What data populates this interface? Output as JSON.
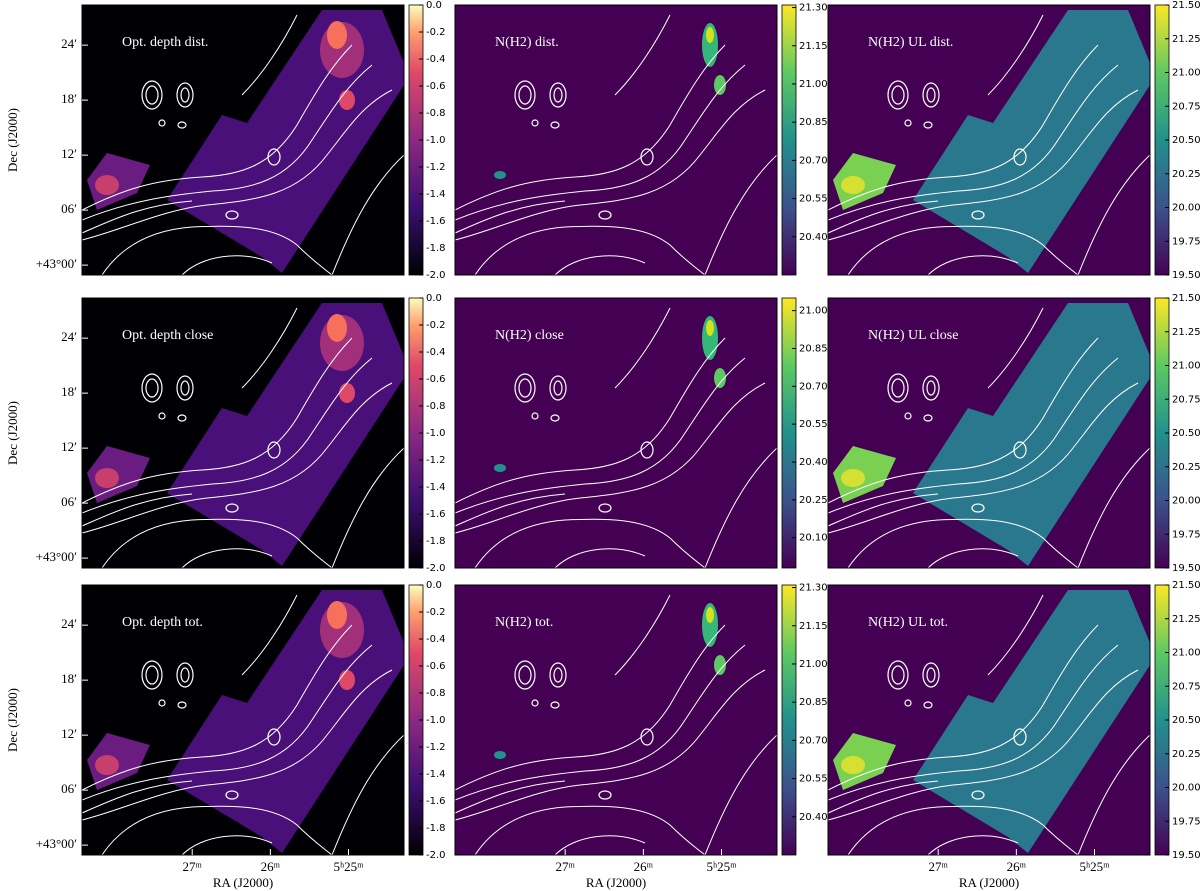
{
  "chart_data": [
    {
      "type": "image",
      "title": "Opt. depth dist.",
      "colormap": "magma",
      "clim": [
        -2.0,
        0.0
      ],
      "cticks": [
        {
          "value": -2.0,
          "label": "-2.0"
        },
        {
          "value": -1.8,
          "label": "-1.8"
        },
        {
          "value": -1.6,
          "label": "-1.6"
        },
        {
          "value": -1.4,
          "label": "-1.4"
        },
        {
          "value": -1.2,
          "label": "-1.2"
        },
        {
          "value": -1.0,
          "label": "-1.0"
        },
        {
          "value": -0.8,
          "label": "-0.8"
        },
        {
          "value": -0.6,
          "label": "-0.6"
        },
        {
          "value": -0.4,
          "label": "-0.4"
        },
        {
          "value": -0.2,
          "label": "-0.2"
        },
        {
          "value": 0.0,
          "label": "0.0"
        }
      ],
      "ylabel": "Dec (J2000)",
      "ylim": [
        42.982,
        43.473
      ],
      "yticks": [
        {
          "value": 43.0,
          "label": "+43°00′"
        },
        {
          "value": 43.1,
          "label": "06′"
        },
        {
          "value": 43.2,
          "label": "12′"
        },
        {
          "value": 43.3,
          "label": "18′"
        },
        {
          "value": 43.4,
          "label": "24′"
        }
      ]
    },
    {
      "type": "image",
      "title": "N(H2) dist.",
      "colormap": "viridis",
      "clim": [
        20.25,
        21.31
      ],
      "cticks": [
        {
          "value": 20.4,
          "label": "20.40"
        },
        {
          "value": 20.55,
          "label": "20.55"
        },
        {
          "value": 20.7,
          "label": "20.70"
        },
        {
          "value": 20.85,
          "label": "20.85"
        },
        {
          "value": 21.0,
          "label": "21.00"
        },
        {
          "value": 21.15,
          "label": "21.15"
        },
        {
          "value": 21.3,
          "label": "21.30"
        }
      ]
    },
    {
      "type": "image",
      "title": "N(H2) UL dist.",
      "colormap": "viridis",
      "clim": [
        19.5,
        21.5
      ],
      "cticks": [
        {
          "value": 19.5,
          "label": "19.50"
        },
        {
          "value": 19.75,
          "label": "19.75"
        },
        {
          "value": 20.0,
          "label": "20.00"
        },
        {
          "value": 20.25,
          "label": "20.25"
        },
        {
          "value": 20.5,
          "label": "20.50"
        },
        {
          "value": 20.75,
          "label": "20.75"
        },
        {
          "value": 21.0,
          "label": "21.00"
        },
        {
          "value": 21.25,
          "label": "21.25"
        },
        {
          "value": 21.5,
          "label": "21.50"
        }
      ]
    },
    {
      "type": "image",
      "title": "Opt. depth close",
      "colormap": "magma",
      "clim": [
        -2.0,
        0.0
      ],
      "cticks": [
        {
          "value": -2.0,
          "label": "-2.0"
        },
        {
          "value": -1.8,
          "label": "-1.8"
        },
        {
          "value": -1.6,
          "label": "-1.6"
        },
        {
          "value": -1.4,
          "label": "-1.4"
        },
        {
          "value": -1.2,
          "label": "-1.2"
        },
        {
          "value": -1.0,
          "label": "-1.0"
        },
        {
          "value": -0.8,
          "label": "-0.8"
        },
        {
          "value": -0.6,
          "label": "-0.6"
        },
        {
          "value": -0.4,
          "label": "-0.4"
        },
        {
          "value": -0.2,
          "label": "-0.2"
        },
        {
          "value": 0.0,
          "label": "0.0"
        }
      ],
      "ylabel": "Dec (J2000)",
      "ylim": [
        42.982,
        43.473
      ],
      "yticks": [
        {
          "value": 43.0,
          "label": "+43°00′"
        },
        {
          "value": 43.1,
          "label": "06′"
        },
        {
          "value": 43.2,
          "label": "12′"
        },
        {
          "value": 43.3,
          "label": "18′"
        },
        {
          "value": 43.4,
          "label": "24′"
        }
      ]
    },
    {
      "type": "image",
      "title": "N(H2) close",
      "colormap": "viridis",
      "clim": [
        19.98,
        21.05
      ],
      "cticks": [
        {
          "value": 20.1,
          "label": "20.10"
        },
        {
          "value": 20.25,
          "label": "20.25"
        },
        {
          "value": 20.4,
          "label": "20.40"
        },
        {
          "value": 20.55,
          "label": "20.55"
        },
        {
          "value": 20.7,
          "label": "20.70"
        },
        {
          "value": 20.85,
          "label": "20.85"
        },
        {
          "value": 21.0,
          "label": "21.00"
        }
      ]
    },
    {
      "type": "image",
      "title": "N(H2) UL close",
      "colormap": "viridis",
      "clim": [
        19.5,
        21.5
      ],
      "cticks": [
        {
          "value": 19.5,
          "label": "19.50"
        },
        {
          "value": 19.75,
          "label": "19.75"
        },
        {
          "value": 20.0,
          "label": "20.00"
        },
        {
          "value": 20.25,
          "label": "20.25"
        },
        {
          "value": 20.5,
          "label": "20.50"
        },
        {
          "value": 20.75,
          "label": "20.75"
        },
        {
          "value": 21.0,
          "label": "21.00"
        },
        {
          "value": 21.25,
          "label": "21.25"
        },
        {
          "value": 21.5,
          "label": "21.50"
        }
      ]
    },
    {
      "type": "image",
      "title": "Opt. depth tot.",
      "colormap": "magma",
      "clim": [
        -2.0,
        0.0
      ],
      "cticks": [
        {
          "value": -2.0,
          "label": "-2.0"
        },
        {
          "value": -1.8,
          "label": "-1.8"
        },
        {
          "value": -1.6,
          "label": "-1.6"
        },
        {
          "value": -1.4,
          "label": "-1.4"
        },
        {
          "value": -1.2,
          "label": "-1.2"
        },
        {
          "value": -1.0,
          "label": "-1.0"
        },
        {
          "value": -0.8,
          "label": "-0.8"
        },
        {
          "value": -0.6,
          "label": "-0.6"
        },
        {
          "value": -0.4,
          "label": "-0.4"
        },
        {
          "value": -0.2,
          "label": "-0.2"
        },
        {
          "value": 0.0,
          "label": "0.0"
        }
      ],
      "ylabel": "Dec (J2000)",
      "ylim": [
        42.982,
        43.473
      ],
      "yticks": [
        {
          "value": 43.0,
          "label": "+43°00′"
        },
        {
          "value": 43.1,
          "label": "06′"
        },
        {
          "value": 43.2,
          "label": "12′"
        },
        {
          "value": 43.3,
          "label": "18′"
        },
        {
          "value": 43.4,
          "label": "24′"
        }
      ],
      "xlabel": "RA (J2000)",
      "xlim": [
        328.41,
        324.29
      ],
      "xticks": [
        {
          "value": 327,
          "label": "27ᵐ"
        },
        {
          "value": 326,
          "label": "26ᵐ"
        },
        {
          "value": 325,
          "label": "5ʰ25ᵐ"
        }
      ]
    },
    {
      "type": "image",
      "title": "N(H2) tot.",
      "colormap": "viridis",
      "clim": [
        20.25,
        21.31
      ],
      "cticks": [
        {
          "value": 20.4,
          "label": "20.40"
        },
        {
          "value": 20.55,
          "label": "20.55"
        },
        {
          "value": 20.7,
          "label": "20.70"
        },
        {
          "value": 20.85,
          "label": "20.85"
        },
        {
          "value": 21.0,
          "label": "21.00"
        },
        {
          "value": 21.15,
          "label": "21.15"
        },
        {
          "value": 21.3,
          "label": "21.30"
        }
      ],
      "xlabel": "RA (J2000)",
      "xlim": [
        328.41,
        324.29
      ],
      "xticks": [
        {
          "value": 327,
          "label": "27ᵐ"
        },
        {
          "value": 326,
          "label": "26ᵐ"
        },
        {
          "value": 325,
          "label": "5ʰ25ᵐ"
        }
      ]
    },
    {
      "type": "image",
      "title": "N(H2) UL tot.",
      "colormap": "viridis",
      "clim": [
        19.5,
        21.5
      ],
      "cticks": [
        {
          "value": 19.5,
          "label": "19.50"
        },
        {
          "value": 19.75,
          "label": "19.75"
        },
        {
          "value": 20.0,
          "label": "20.00"
        },
        {
          "value": 20.25,
          "label": "20.25"
        },
        {
          "value": 20.5,
          "label": "20.50"
        },
        {
          "value": 20.75,
          "label": "20.75"
        },
        {
          "value": 21.0,
          "label": "21.00"
        },
        {
          "value": 21.25,
          "label": "21.25"
        },
        {
          "value": 21.5,
          "label": "21.50"
        }
      ],
      "xlabel": "RA (J2000)",
      "xlim": [
        328.41,
        324.29
      ],
      "xticks": [
        {
          "value": 327,
          "label": "27ᵐ"
        },
        {
          "value": 326,
          "label": "26ᵐ"
        },
        {
          "value": 325,
          "label": "5ʰ25ᵐ"
        }
      ]
    }
  ]
}
